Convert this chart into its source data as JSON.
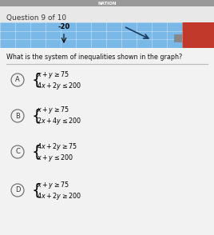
{
  "title": "Question 9 of 10",
  "question": "What is the system of inequalities shown in the graph?",
  "bg_color": "#d8d8d8",
  "content_bg": "#f0f0f0",
  "graph_bg": "#7ab8e8",
  "graph_text": "-20",
  "graph_right_color": "#c0392b",
  "separator_color": "#aaaaaa",
  "options": [
    {
      "label": "A",
      "line1": "$x + y \\geq 75$",
      "line2": "$4x + 2y \\leq 200$"
    },
    {
      "label": "B",
      "line1": "$x + y \\geq 75$",
      "line2": "$2x + 4y \\leq 200$"
    },
    {
      "label": "C",
      "line1": "$4x + 2y \\geq 75$",
      "line2": "$x + y \\leq 200$"
    },
    {
      "label": "D",
      "line1": "$x + y \\geq 75$",
      "line2": "$4x + 2y \\geq 200$"
    }
  ]
}
